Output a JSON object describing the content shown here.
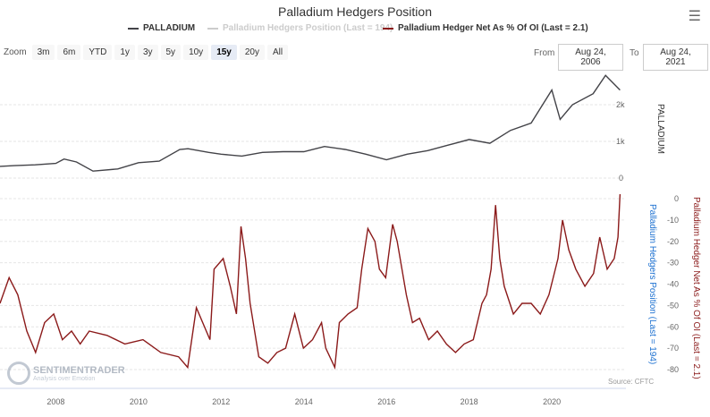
{
  "title": "Palladium Hedgers Position",
  "menu_icon": "hamburger-menu-icon",
  "legend": [
    {
      "label": "PALLADIUM",
      "color": "#434348"
    },
    {
      "label": "Palladium Hedgers Position (Last = 194)",
      "color": "#cccccc"
    },
    {
      "label": "Palladium Hedger Net As % Of OI (Last = 2.1)",
      "color": "#8b1a1a"
    }
  ],
  "zoom": {
    "label": "Zoom",
    "buttons": [
      "3m",
      "6m",
      "YTD",
      "1y",
      "3y",
      "5y",
      "10y",
      "15y",
      "20y",
      "All"
    ],
    "selected": "15y"
  },
  "range": {
    "from_label": "From",
    "from": "Aug 24, 2006",
    "to_label": "To",
    "to": "Aug 24, 2021"
  },
  "source": "Source: CFTC",
  "watermark": {
    "name": "SENTIMENTRADER",
    "tagline": "Analysis over Emotion"
  },
  "chart_data": [
    {
      "type": "line",
      "name": "PALLADIUM",
      "ylabel": "PALLADIUM",
      "ylim": [
        0,
        3000
      ],
      "yticks": [
        "0",
        "1k",
        "2k"
      ],
      "ytick_values": [
        0,
        1000,
        2000
      ],
      "x": [
        2006.65,
        2007,
        2007.5,
        2008,
        2008.2,
        2008.5,
        2008.9,
        2009,
        2009.5,
        2010,
        2010.5,
        2011,
        2011.2,
        2011.7,
        2012,
        2012.5,
        2013,
        2013.5,
        2014,
        2014.5,
        2015,
        2015.5,
        2016,
        2016.5,
        2017,
        2017.5,
        2018,
        2018.5,
        2019,
        2019.5,
        2020,
        2020.2,
        2020.5,
        2021,
        2021.3,
        2021.65
      ],
      "values": [
        320,
        340,
        360,
        400,
        520,
        440,
        190,
        200,
        250,
        420,
        460,
        780,
        800,
        700,
        650,
        600,
        700,
        720,
        720,
        860,
        780,
        650,
        500,
        650,
        750,
        900,
        1050,
        950,
        1300,
        1500,
        2400,
        1600,
        2000,
        2300,
        2800,
        2400
      ]
    },
    {
      "type": "line",
      "name": "Palladium Hedger Net As % Of OI",
      "ylabel": "Palladium Hedger Net As % Of OI (Last = 2.1)",
      "ylabel2": "Palladium Hedgers Position (Last = 194)",
      "ylim": [
        -80,
        0
      ],
      "yticks": [
        "0",
        "-10",
        "-20",
        "-30",
        "-40",
        "-50",
        "-60",
        "-70",
        "-80"
      ],
      "x": [
        2006.65,
        2006.87,
        2007.08,
        2007.3,
        2007.51,
        2007.73,
        2007.95,
        2008.16,
        2008.38,
        2008.59,
        2008.81,
        2009.24,
        2009.67,
        2010.11,
        2010.54,
        2010.97,
        2011.19,
        2011.4,
        2011.73,
        2011.83,
        2012.05,
        2012.22,
        2012.37,
        2012.48,
        2012.59,
        2012.7,
        2012.91,
        2013.13,
        2013.35,
        2013.56,
        2013.78,
        2013.99,
        2014.21,
        2014.43,
        2014.53,
        2014.75,
        2014.86,
        2015.07,
        2015.29,
        2015.4,
        2015.55,
        2015.72,
        2015.83,
        2015.98,
        2016.15,
        2016.26,
        2016.48,
        2016.63,
        2016.8,
        2017.02,
        2017.23,
        2017.45,
        2017.67,
        2017.88,
        2018.1,
        2018.31,
        2018.42,
        2018.53,
        2018.64,
        2018.74,
        2018.85,
        2019.07,
        2019.28,
        2019.5,
        2019.72,
        2019.93,
        2020.15,
        2020.26,
        2020.41,
        2020.58,
        2020.8,
        2021.01,
        2021.16,
        2021.34,
        2021.51,
        2021.6,
        2021.65
      ],
      "values": [
        -49,
        -37,
        -45,
        -62,
        -72,
        -58,
        -54,
        -66,
        -62,
        -68,
        -62,
        -64,
        -68,
        -66,
        -72,
        -74,
        -79,
        -51,
        -66,
        -33,
        -28,
        -41,
        -54,
        -13,
        -28,
        -49,
        -74,
        -77,
        -72,
        -70,
        -54,
        -70,
        -66,
        -58,
        -70,
        -79,
        -58,
        -54,
        -51,
        -33,
        -14,
        -20,
        -33,
        -37,
        -12,
        -20,
        -45,
        -58,
        -56,
        -66,
        -62,
        -68,
        -72,
        -68,
        -66,
        -49,
        -45,
        -33,
        -3,
        -28,
        -41,
        -54,
        -49,
        -49,
        -54,
        -45,
        -28,
        -10,
        -24,
        -33,
        -41,
        -35,
        -18,
        -33,
        -28,
        -18,
        2.1
      ]
    },
    {
      "type": "axis",
      "xticks": [
        "2008",
        "2010",
        "2012",
        "2014",
        "2016",
        "2018",
        "2020"
      ],
      "xtick_values": [
        2008,
        2010,
        2012,
        2014,
        2016,
        2018,
        2020
      ],
      "xlim": [
        2006.65,
        2021.75
      ]
    }
  ]
}
